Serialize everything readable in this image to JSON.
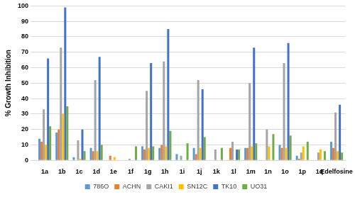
{
  "chart_data": {
    "type": "bar",
    "y_label": "% Growth Inhibition",
    "categories": [
      "1a",
      "1b",
      "1c",
      "1d",
      "1e",
      "1f",
      "1g",
      "1h",
      "1i",
      "1j",
      "1k",
      "1l",
      "1m",
      "1n",
      "1o",
      "1p",
      "1q",
      "Edelfosine"
    ],
    "series": [
      {
        "name": "786O",
        "color": "#5b9bd5",
        "values": [
          14,
          18,
          2,
          8,
          0,
          0,
          9,
          8,
          4,
          8,
          0,
          0,
          8,
          0,
          10,
          3,
          0,
          12
        ]
      },
      {
        "name": "ACHN",
        "color": "#ed7d31",
        "values": [
          12,
          20,
          0,
          6,
          3,
          0,
          7,
          10,
          0,
          4,
          0,
          8,
          8,
          0,
          8,
          1,
          0,
          8
        ]
      },
      {
        "name": "CAKI1",
        "color": "#a5a5a5",
        "values": [
          33,
          73,
          13,
          52,
          0,
          1,
          45,
          64,
          3,
          52,
          7,
          12,
          50,
          20,
          63,
          5,
          5,
          31
        ]
      },
      {
        "name": "SN12C",
        "color": "#ffc000",
        "values": [
          10,
          30,
          1,
          6,
          2,
          0,
          8,
          9,
          0,
          8,
          0,
          0,
          9,
          9,
          8,
          9,
          7,
          6
        ]
      },
      {
        "name": "TK10",
        "color": "#4472c4",
        "values": [
          66,
          99,
          20,
          67,
          0,
          0,
          63,
          85,
          0,
          46,
          0,
          7,
          73,
          0,
          76,
          0,
          0,
          36
        ]
      },
      {
        "name": "UO31",
        "color": "#70ad47",
        "values": [
          22,
          35,
          6,
          10,
          0,
          9,
          9,
          19,
          11,
          15,
          8,
          7,
          11,
          17,
          16,
          12,
          6,
          5
        ]
      }
    ],
    "ylim": [
      0,
      100
    ],
    "yticks": [
      0,
      10,
      20,
      30,
      40,
      50,
      60,
      70,
      80,
      90,
      100
    ],
    "grid": true,
    "legend": "bottom"
  }
}
